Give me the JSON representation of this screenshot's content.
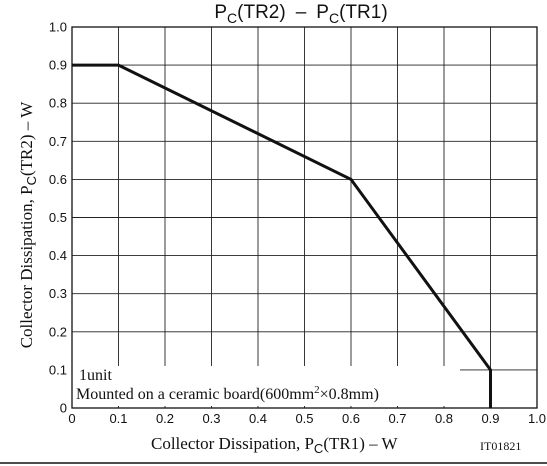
{
  "chart_data": {
    "type": "line",
    "title_main": "P",
    "title_main_sub": "C",
    "title_main_paren": "(TR2)",
    "title_dash": "–",
    "title_second": "P",
    "title_second_sub": "C",
    "title_second_paren": "(TR1)",
    "xlabel": "Collector Dissipation, P",
    "xlabel_sub": "C",
    "xlabel_tail": "(TR1)  –  W",
    "ylabel": "Collector Dissipation, P",
    "ylabel_sub": "C",
    "ylabel_tail": "(TR2)  –  W",
    "xlim": [
      0,
      1.0
    ],
    "ylim": [
      0,
      1.0
    ],
    "xticks": [
      "0",
      "0.1",
      "0.2",
      "0.3",
      "0.4",
      "0.5",
      "0.6",
      "0.7",
      "0.8",
      "0.9",
      "1.0"
    ],
    "yticks": [
      "0",
      "0.1",
      "0.2",
      "0.3",
      "0.4",
      "0.5",
      "0.6",
      "0.7",
      "0.8",
      "0.9",
      "1.0"
    ],
    "grid": true,
    "series": [
      {
        "x": [
          0,
          0.1,
          0.6,
          0.9,
          0.9
        ],
        "y": [
          0.9,
          0.9,
          0.6,
          0.1,
          0
        ]
      }
    ],
    "annotation_unit": "1unit",
    "annotation_board": "Mounted on a ceramic board(600mm",
    "annotation_board_sup": "2",
    "annotation_board_tail": "×0.8mm)",
    "figure_code": "IT01821"
  }
}
